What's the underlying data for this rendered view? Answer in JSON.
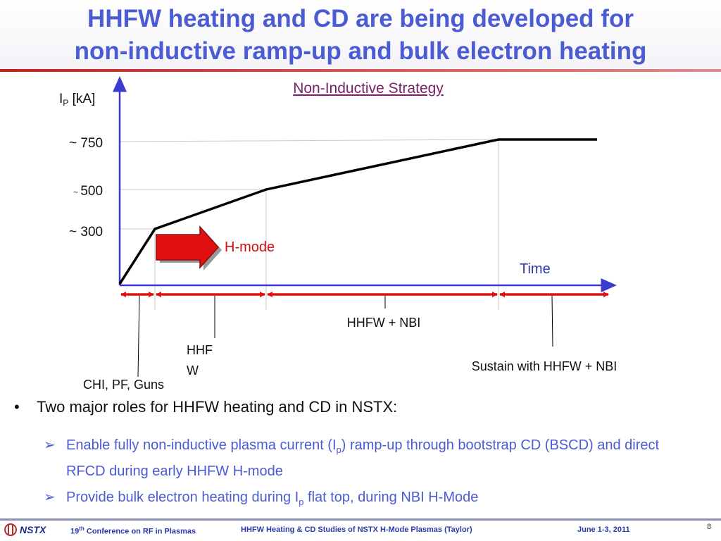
{
  "slide": {
    "title_line1": "HHFW heating and CD are being developed for",
    "title_line2": "non-inductive ramp-up and bulk electron heating"
  },
  "chart": {
    "subtitle": "Non-Inductive Strategy",
    "y_label_main": "I",
    "y_label_sub": "P",
    "y_label_unit": " [kA]",
    "ticks": [
      {
        "prefix": "~ ",
        "value": "750"
      },
      {
        "prefix": "~ ",
        "value": "500"
      },
      {
        "prefix": "~ ",
        "value": "300"
      }
    ],
    "x_label": "Time",
    "hmode_label": "H-mode",
    "phase_labels": {
      "chi": "CHI, PF, Guns",
      "hhfw_line1": "HHF",
      "hhfw_line2": "W",
      "hhfw_nbi": "HHFW + NBI",
      "sustain": "Sustain with HHFW + NBI"
    },
    "colors": {
      "axis": "#3b3bd0",
      "phase_arrows": "#e01010",
      "curve": "#000000",
      "hmode_arrow": "#e01010"
    }
  },
  "chart_data": {
    "type": "line",
    "title": "Non-Inductive Strategy",
    "xlabel": "Time",
    "ylabel": "IP [kA]",
    "series": [
      {
        "x": [
          0,
          1,
          4,
          10,
          13
        ],
        "y": [
          0,
          300,
          500,
          750,
          750
        ]
      }
    ],
    "y_ticks": [
      "~ 300",
      "~ 500",
      "~ 750"
    ],
    "phases": [
      "CHI, PF, Guns",
      "HHFW",
      "HHFW + NBI",
      "Sustain with HHFW + NBI"
    ]
  },
  "bullets": {
    "main_bullet_symbol": "•",
    "main": "Two major roles for HHFW heating and CD in NSTX:",
    "sub_arrow": "➢",
    "sub1_a": "Enable fully non-inductive plasma current (I",
    "sub1_sub": "p",
    "sub1_b": ") ramp-up through bootstrap CD (BSCD) and direct RFCD during early HHFW H-mode",
    "sub2_a": "Provide bulk electron heating during I",
    "sub2_sub": "p",
    "sub2_b": " flat top, during NBI H-Mode"
  },
  "footer": {
    "logo_text": "NSTX",
    "conf_sup": "th",
    "conf_num": "19",
    "conf_rest": " Conference on RF in Plasmas",
    "talk": "HHFW Heating & CD Studies of NSTX H-Mode Plasmas (Taylor)",
    "date": "June 1-3, 2011",
    "page": "8"
  }
}
